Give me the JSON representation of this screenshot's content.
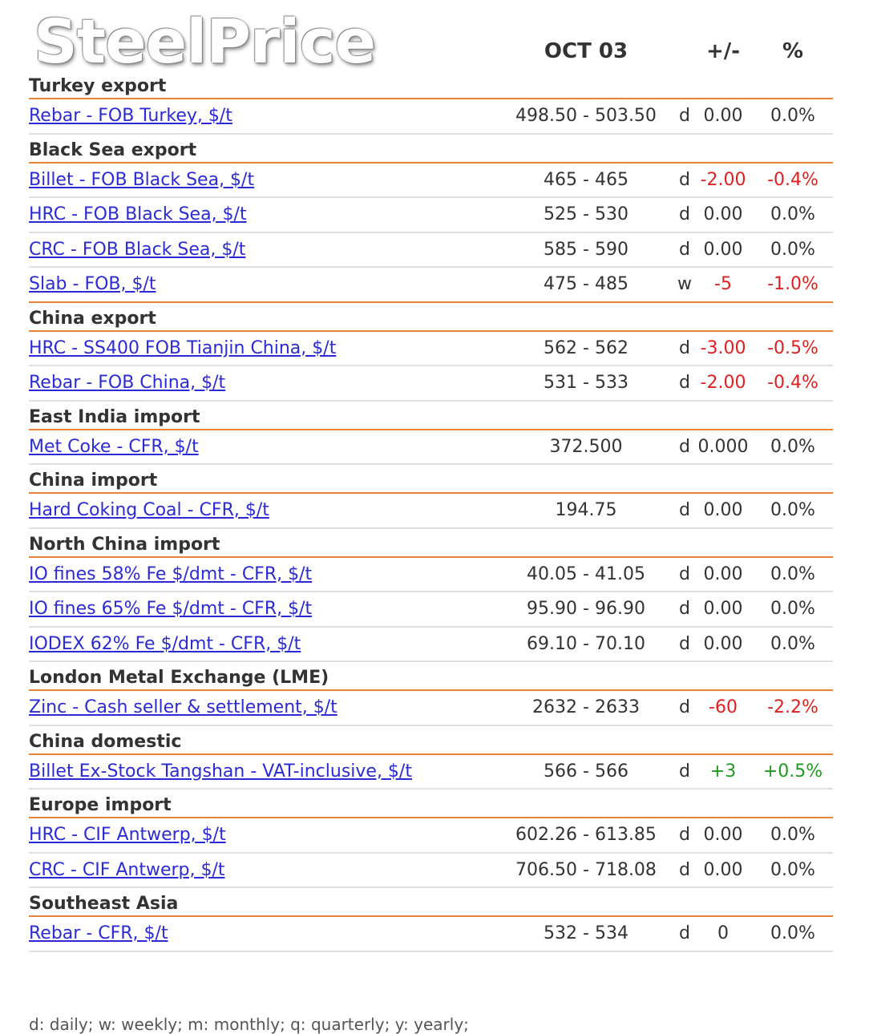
{
  "brand": "SteelPrice",
  "header": {
    "date": "OCT 03",
    "change": "+/-",
    "pct": "%"
  },
  "colors": {
    "accent": "#e8833a",
    "link": "#2b2bd6",
    "negative": "#e02020",
    "positive": "#1e9a1e"
  },
  "sections": [
    {
      "title": "Turkey export",
      "rows": [
        {
          "name": "Rebar - FOB Turkey, $/t",
          "price": "498.50 - 503.50",
          "freq": "d",
          "change": "0.00",
          "pct": "0.0%",
          "dir": "zero"
        }
      ]
    },
    {
      "title": "Black Sea export",
      "rows": [
        {
          "name": "Billet - FOB Black Sea, $/t",
          "price": "465 - 465",
          "freq": "d",
          "change": "-2.00",
          "pct": "-0.4%",
          "dir": "neg"
        },
        {
          "name": "HRC - FOB Black Sea, $/t",
          "price": "525 - 530",
          "freq": "d",
          "change": "0.00",
          "pct": "0.0%",
          "dir": "zero"
        },
        {
          "name": "CRC - FOB Black Sea, $/t",
          "price": "585 - 590",
          "freq": "d",
          "change": "0.00",
          "pct": "0.0%",
          "dir": "zero"
        },
        {
          "name": "Slab - FOB, $/t",
          "price": "475 - 485",
          "freq": "w",
          "change": "-5",
          "pct": "-1.0%",
          "dir": "neg"
        }
      ]
    },
    {
      "title": "China export",
      "rows": [
        {
          "name": "HRC - SS400 FOB Tianjin China, $/t",
          "price": "562 - 562",
          "freq": "d",
          "change": "-3.00",
          "pct": "-0.5%",
          "dir": "neg"
        },
        {
          "name": "Rebar - FOB China, $/t",
          "price": "531 - 533",
          "freq": "d",
          "change": "-2.00",
          "pct": "-0.4%",
          "dir": "neg"
        }
      ]
    },
    {
      "title": "East India import",
      "rows": [
        {
          "name": "Met Coke - CFR, $/t",
          "price": "372.500",
          "freq": "d",
          "change": "0.000",
          "pct": "0.0%",
          "dir": "zero"
        }
      ]
    },
    {
      "title": "China import",
      "rows": [
        {
          "name": "Hard Coking Coal - CFR, $/t",
          "price": "194.75",
          "freq": "d",
          "change": "0.00",
          "pct": "0.0%",
          "dir": "zero"
        }
      ]
    },
    {
      "title": "North China import",
      "rows": [
        {
          "name": "IO fines 58% Fe $/dmt - CFR, $/t",
          "price": "40.05 - 41.05",
          "freq": "d",
          "change": "0.00",
          "pct": "0.0%",
          "dir": "zero"
        },
        {
          "name": "IO fines 65% Fe $/dmt - CFR, $/t",
          "price": "95.90 - 96.90",
          "freq": "d",
          "change": "0.00",
          "pct": "0.0%",
          "dir": "zero"
        },
        {
          "name": "IODEX 62% Fe $/dmt - CFR, $/t",
          "price": "69.10 - 70.10",
          "freq": "d",
          "change": "0.00",
          "pct": "0.0%",
          "dir": "zero"
        }
      ]
    },
    {
      "title": "London Metal Exchange (LME)",
      "rows": [
        {
          "name": "Zinc - Cash seller & settlement, $/t",
          "price": "2632 - 2633",
          "freq": "d",
          "change": "-60",
          "pct": "-2.2%",
          "dir": "neg"
        }
      ]
    },
    {
      "title": "China domestic",
      "rows": [
        {
          "name": "Billet Ex-Stock Tangshan - VAT-inclusive, $/t",
          "price": "566 - 566",
          "freq": "d",
          "change": "+3",
          "pct": "+0.5%",
          "dir": "pos"
        }
      ]
    },
    {
      "title": "Europe import",
      "rows": [
        {
          "name": "HRC - CIF Antwerp, $/t",
          "price": "602.26 - 613.85",
          "freq": "d",
          "change": "0.00",
          "pct": "0.0%",
          "dir": "zero"
        },
        {
          "name": "CRC - CIF Antwerp, $/t",
          "price": "706.50 - 718.08",
          "freq": "d",
          "change": "0.00",
          "pct": "0.0%",
          "dir": "zero"
        }
      ]
    },
    {
      "title": "Southeast Asia",
      "rows": [
        {
          "name": "Rebar - CFR, $/t",
          "price": "532 - 534",
          "freq": "d",
          "change": "0",
          "pct": "0.0%",
          "dir": "zero"
        }
      ]
    }
  ],
  "footnote": "d: daily; w: weekly; m: monthly; q: quarterly; y: yearly;"
}
